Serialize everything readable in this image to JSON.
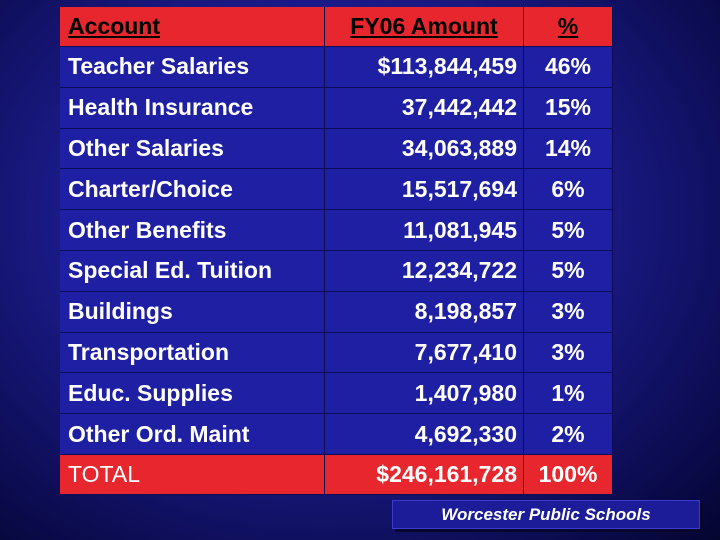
{
  "table": {
    "headers": [
      "Account",
      "FY06 Amount",
      "%"
    ],
    "rows": [
      {
        "account": "Teacher Salaries",
        "amount": "$113,844,459",
        "percent": "46%"
      },
      {
        "account": "Health Insurance",
        "amount": "37,442,442",
        "percent": "15%"
      },
      {
        "account": "Other Salaries",
        "amount": "34,063,889",
        "percent": "14%"
      },
      {
        "account": "Charter/Choice",
        "amount": "15,517,694",
        "percent": "6%"
      },
      {
        "account": "Other Benefits",
        "amount": "11,081,945",
        "percent": "5%"
      },
      {
        "account": "Special Ed. Tuition",
        "amount": "12,234,722",
        "percent": "5%"
      },
      {
        "account": "Buildings",
        "amount": "8,198,857",
        "percent": "3%"
      },
      {
        "account": "Transportation",
        "amount": "7,677,410",
        "percent": "3%"
      },
      {
        "account": "Educ. Supplies",
        "amount": "1,407,980",
        "percent": "1%"
      },
      {
        "account": "Other Ord. Maint",
        "amount": "4,692,330",
        "percent": "2%"
      }
    ],
    "total": {
      "account": "TOTAL",
      "amount": "$246,161,728",
      "percent": "100%"
    }
  },
  "footer": {
    "label": "Worcester Public Schools"
  },
  "colors": {
    "background": "#1b1b8a",
    "header_red": "#e8262e",
    "row_blue": "#1f1fa3"
  }
}
